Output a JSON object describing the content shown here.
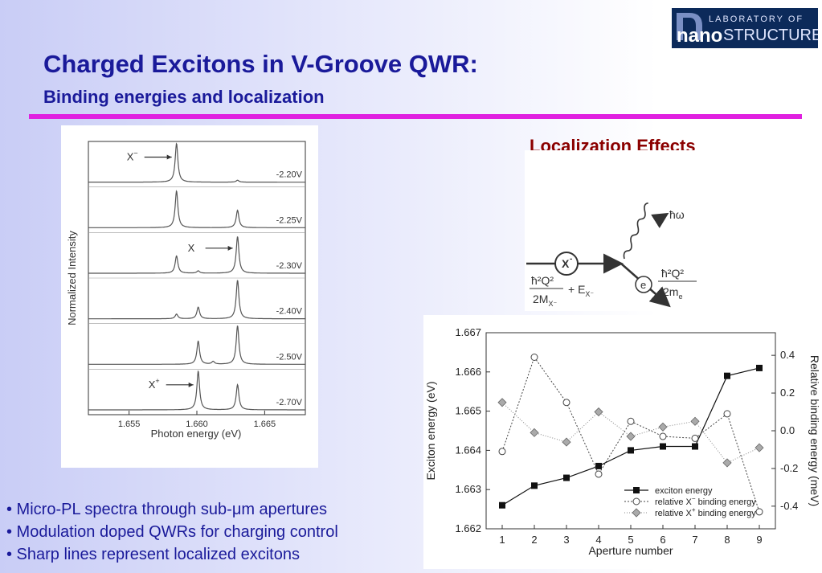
{
  "slide": {
    "title": "Charged Excitons in V-Groove QWR:",
    "subtitle": "Binding energies and localization"
  },
  "logo": {
    "line1": "LABORATORY OF",
    "line2_a": "nano",
    "line2_b": "STRUCTURES"
  },
  "localization": {
    "title": "Localization Effects"
  },
  "diagram": {
    "exciton_label": "X",
    "exciton_sup": "-",
    "photon_label": "ħω",
    "electron_label": "e",
    "left_num": "ħ²Q²",
    "left_den": "2M",
    "left_den_sub": "X⁻",
    "left_plus": "+ E",
    "left_plus_sub": "X⁻",
    "right_num": "ħ²Q²",
    "right_den": "2m",
    "right_den_sub": "e"
  },
  "bullets": [
    "• Micro-PL spectra through sub-μm apertures",
    "• Modulation doped QWRs for charging control",
    "• Sharp lines represent localized excitons"
  ],
  "chart_data": [
    {
      "type": "line",
      "xlabel": "Photon energy (eV)",
      "ylabel": "Normalized Intensity",
      "xlim": [
        1.652,
        1.668
      ],
      "x_ticks": [
        "1.655",
        "1.660",
        "1.665"
      ],
      "series": [
        {
          "name": "-2.20V",
          "peaks": [
            {
              "x": 1.6585,
              "h": 1.0
            },
            {
              "x": 1.663,
              "h": 0.05
            }
          ]
        },
        {
          "name": "-2.25V",
          "peaks": [
            {
              "x": 1.6585,
              "h": 0.95
            },
            {
              "x": 1.663,
              "h": 0.45
            }
          ]
        },
        {
          "name": "-2.30V",
          "peaks": [
            {
              "x": 1.6585,
              "h": 0.45
            },
            {
              "x": 1.6601,
              "h": 0.06
            },
            {
              "x": 1.663,
              "h": 0.95
            }
          ]
        },
        {
          "name": "-2.40V",
          "peaks": [
            {
              "x": 1.6585,
              "h": 0.12
            },
            {
              "x": 1.6601,
              "h": 0.3
            },
            {
              "x": 1.663,
              "h": 1.0
            }
          ]
        },
        {
          "name": "-2.50V",
          "peaks": [
            {
              "x": 1.6601,
              "h": 0.6
            },
            {
              "x": 1.6612,
              "h": 0.07
            },
            {
              "x": 1.663,
              "h": 1.0
            }
          ]
        },
        {
          "name": "-2.70V",
          "peaks": [
            {
              "x": 1.6601,
              "h": 1.0
            },
            {
              "x": 1.663,
              "h": 0.65
            }
          ]
        }
      ],
      "annotations": [
        {
          "label": "X",
          "sup": "−",
          "series": "-2.20V"
        },
        {
          "label": "X",
          "sup": "",
          "series": "-2.30V"
        },
        {
          "label": "X",
          "sup": "+",
          "series": "-2.70V"
        }
      ]
    },
    {
      "type": "line",
      "xlabel": "Aperture number",
      "ylabel": "Exciton energy (eV)",
      "y2label": "Relative binding energy (meV)",
      "x": [
        1,
        2,
        3,
        4,
        5,
        6,
        7,
        8,
        9
      ],
      "ylim": [
        1.662,
        1.667
      ],
      "y_ticks": [
        "1.662",
        "1.663",
        "1.664",
        "1.665",
        "1.666",
        "1.667"
      ],
      "y2lim": [
        -0.52,
        0.52
      ],
      "y2_ticks": [
        "0.4",
        "0.2",
        "0.0",
        "-0.2",
        "-0.4"
      ],
      "y2_tick_values": [
        0.4,
        0.2,
        0.0,
        -0.2,
        -0.4
      ],
      "legend_position": "bottom-right",
      "series": [
        {
          "name": "exciton energy",
          "axis": "left",
          "marker": "square",
          "values": [
            1.6626,
            1.6631,
            1.6633,
            1.6636,
            1.664,
            1.6641,
            1.6641,
            1.6659,
            1.6661
          ]
        },
        {
          "name_prefix": "relative X",
          "name_sup": "−",
          "name_suffix": " binding energy",
          "axis": "right",
          "marker": "circle",
          "values": [
            -0.11,
            0.39,
            0.15,
            -0.23,
            0.05,
            -0.03,
            -0.04,
            0.09,
            -0.43
          ]
        },
        {
          "name_prefix": "relative X",
          "name_sup": "+",
          "name_suffix": " binding energy",
          "axis": "right",
          "marker": "diamond",
          "values": [
            0.15,
            -0.01,
            -0.06,
            0.1,
            -0.03,
            0.02,
            0.05,
            -0.17,
            -0.09
          ]
        }
      ]
    }
  ]
}
